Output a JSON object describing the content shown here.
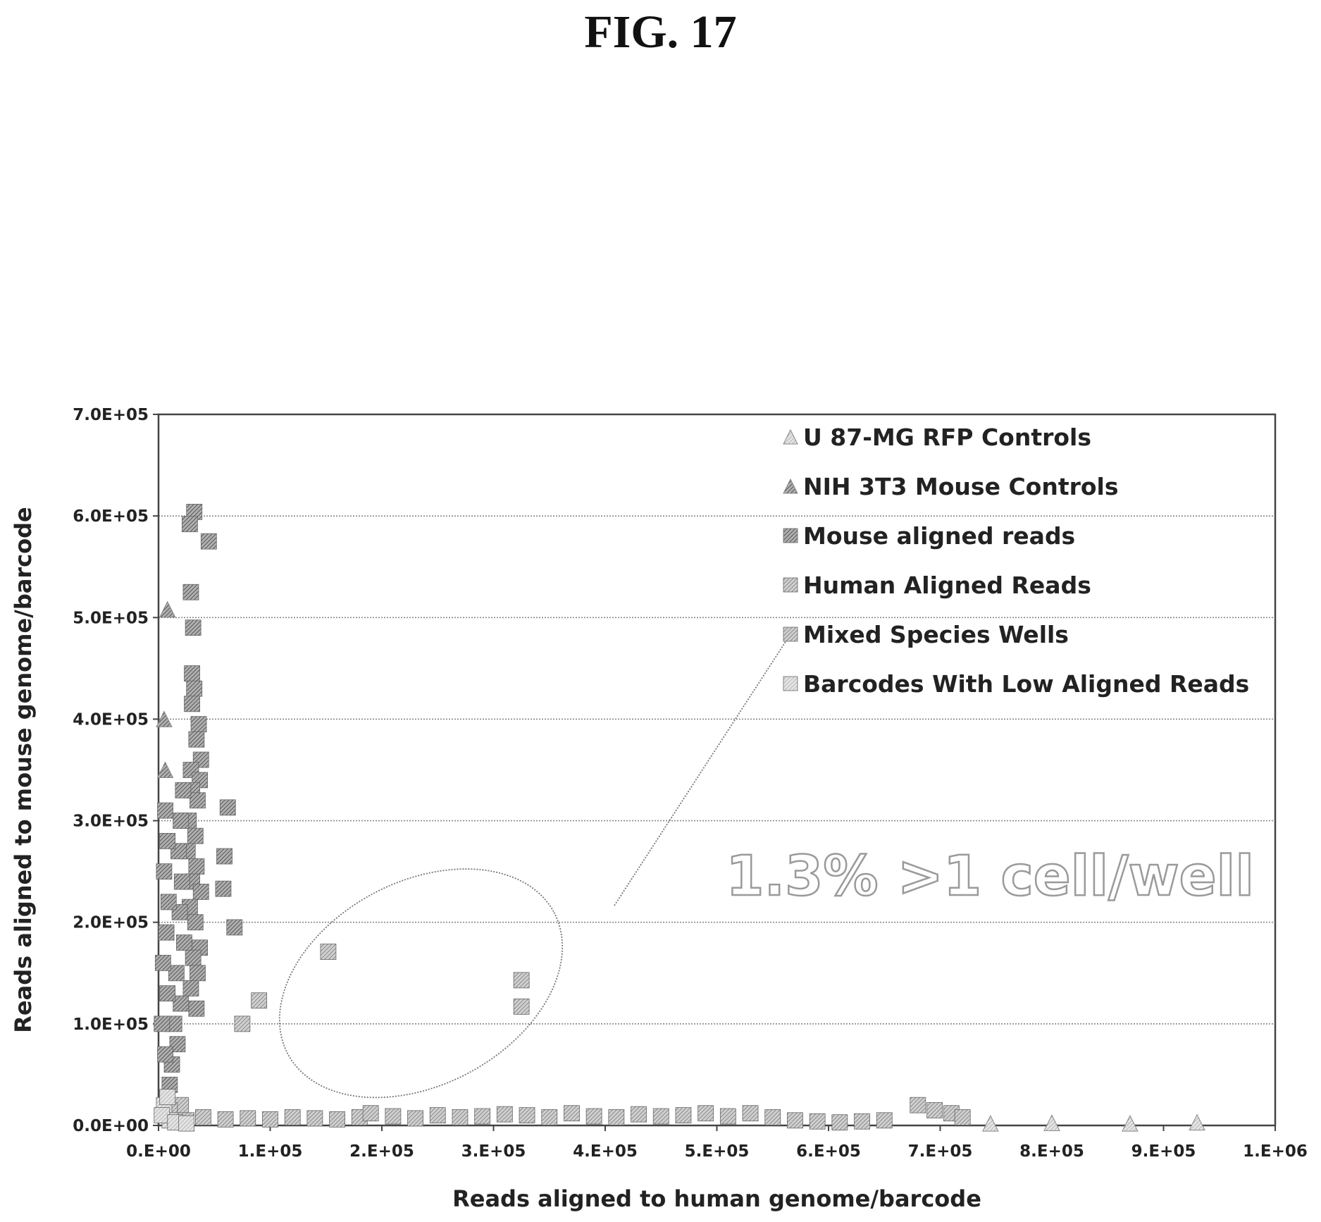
{
  "figure_label": "FIG. 17",
  "chart_data": {
    "type": "scatter",
    "xlabel": "Reads aligned to human genome/barcode",
    "ylabel": "Reads aligned to mouse genome/barcode",
    "xlim": [
      0,
      1000000
    ],
    "ylim": [
      0,
      700000
    ],
    "x_ticks": [
      {
        "v": 0,
        "label": "0.E+00"
      },
      {
        "v": 100000,
        "label": "1.E+05"
      },
      {
        "v": 200000,
        "label": "2.E+05"
      },
      {
        "v": 300000,
        "label": "3.E+05"
      },
      {
        "v": 400000,
        "label": "4.E+05"
      },
      {
        "v": 500000,
        "label": "5.E+05"
      },
      {
        "v": 600000,
        "label": "6.E+05"
      },
      {
        "v": 700000,
        "label": "7.E+05"
      },
      {
        "v": 800000,
        "label": "8.E+05"
      },
      {
        "v": 900000,
        "label": "9.E+05"
      },
      {
        "v": 1000000,
        "label": "1.E+06"
      }
    ],
    "y_ticks": [
      {
        "v": 0,
        "label": "0.0E+00"
      },
      {
        "v": 100000,
        "label": "1.0E+05"
      },
      {
        "v": 200000,
        "label": "2.0E+05"
      },
      {
        "v": 300000,
        "label": "3.0E+05"
      },
      {
        "v": 400000,
        "label": "4.0E+05"
      },
      {
        "v": 500000,
        "label": "5.0E+05"
      },
      {
        "v": 600000,
        "label": "6.0E+05"
      },
      {
        "v": 700000,
        "label": "7.0E+05"
      }
    ],
    "grid": "horizontal",
    "legend_position": "top-right",
    "annotation": "1.3% >1 cell/well",
    "highlight_ellipse": {
      "cx": 235000,
      "cy": 140000,
      "rx": 135000,
      "ry": 100000,
      "rotation_deg": -28
    },
    "series": [
      {
        "name": "U 87-MG RFP Controls",
        "marker": "triangle",
        "color": "#c8c8c8",
        "points": [
          [
            930000,
            3000
          ],
          [
            870000,
            2000
          ],
          [
            800000,
            2500
          ],
          [
            745000,
            2000
          ]
        ]
      },
      {
        "name": "NIH 3T3 Mouse Controls",
        "marker": "triangle",
        "color": "#909090",
        "points": [
          [
            8000,
            508000
          ],
          [
            5000,
            400000
          ],
          [
            6000,
            350000
          ]
        ]
      },
      {
        "name": "Mouse aligned reads",
        "marker": "square",
        "color": "#7a7a7a",
        "points": [
          [
            32000,
            604000
          ],
          [
            28000,
            592000
          ],
          [
            45000,
            575000
          ],
          [
            29000,
            525000
          ],
          [
            31000,
            490000
          ],
          [
            30000,
            445000
          ],
          [
            32000,
            430000
          ],
          [
            30000,
            415000
          ],
          [
            36000,
            395000
          ],
          [
            34000,
            380000
          ],
          [
            38000,
            360000
          ],
          [
            29000,
            350000
          ],
          [
            37000,
            340000
          ],
          [
            30000,
            330000
          ],
          [
            35000,
            320000
          ],
          [
            27000,
            300000
          ],
          [
            33000,
            285000
          ],
          [
            26000,
            270000
          ],
          [
            34000,
            255000
          ],
          [
            30000,
            240000
          ],
          [
            38000,
            230000
          ],
          [
            28000,
            215000
          ],
          [
            33000,
            200000
          ],
          [
            37000,
            175000
          ],
          [
            31000,
            165000
          ],
          [
            35000,
            150000
          ],
          [
            29000,
            135000
          ],
          [
            34000,
            115000
          ],
          [
            22000,
            330000
          ],
          [
            20000,
            300000
          ],
          [
            18000,
            270000
          ],
          [
            21000,
            240000
          ],
          [
            19000,
            210000
          ],
          [
            23000,
            180000
          ],
          [
            16000,
            150000
          ],
          [
            20000,
            120000
          ],
          [
            14000,
            100000
          ],
          [
            17000,
            80000
          ],
          [
            12000,
            60000
          ],
          [
            10000,
            40000
          ],
          [
            6000,
            310000
          ],
          [
            8000,
            280000
          ],
          [
            5000,
            250000
          ],
          [
            9000,
            220000
          ],
          [
            7000,
            190000
          ],
          [
            4000,
            160000
          ],
          [
            8000,
            130000
          ],
          [
            3000,
            100000
          ],
          [
            6000,
            70000
          ],
          [
            62000,
            313000
          ],
          [
            59000,
            265000
          ],
          [
            58000,
            233000
          ],
          [
            68000,
            195000
          ]
        ]
      },
      {
        "name": "Human Aligned Reads",
        "marker": "square",
        "color": "#bdbdbd",
        "points": [
          [
            40000,
            8000
          ],
          [
            60000,
            6000
          ],
          [
            80000,
            7000
          ],
          [
            100000,
            6000
          ],
          [
            120000,
            8000
          ],
          [
            140000,
            7000
          ],
          [
            160000,
            6000
          ],
          [
            180000,
            8000
          ],
          [
            190000,
            12000
          ],
          [
            210000,
            9000
          ],
          [
            230000,
            7000
          ],
          [
            250000,
            10000
          ],
          [
            270000,
            8000
          ],
          [
            290000,
            9000
          ],
          [
            310000,
            11000
          ],
          [
            330000,
            10000
          ],
          [
            350000,
            8000
          ],
          [
            370000,
            12000
          ],
          [
            390000,
            9000
          ],
          [
            410000,
            8000
          ],
          [
            430000,
            11000
          ],
          [
            450000,
            9000
          ],
          [
            470000,
            10000
          ],
          [
            490000,
            12000
          ],
          [
            510000,
            9000
          ],
          [
            530000,
            12000
          ],
          [
            550000,
            8000
          ],
          [
            570000,
            5000
          ],
          [
            590000,
            4000
          ],
          [
            610000,
            3000
          ],
          [
            630000,
            4000
          ],
          [
            650000,
            5000
          ],
          [
            680000,
            20000
          ],
          [
            695000,
            15000
          ],
          [
            710000,
            12000
          ],
          [
            720000,
            8000
          ],
          [
            20000,
            20000
          ],
          [
            10000,
            15000
          ],
          [
            25000,
            5000
          ]
        ]
      },
      {
        "name": "Mixed Species Wells",
        "marker": "square",
        "color": "#c9c9c9",
        "points": [
          [
            75000,
            100000
          ],
          [
            90000,
            123000
          ],
          [
            152000,
            171000
          ],
          [
            325000,
            143000
          ],
          [
            325000,
            117000
          ]
        ]
      },
      {
        "name": "Barcodes With Low Aligned Reads",
        "marker": "square",
        "color": "#d8d8d8",
        "points": [
          [
            5000,
            20000
          ],
          [
            10000,
            5000
          ],
          [
            3000,
            10000
          ],
          [
            15000,
            3000
          ],
          [
            25000,
            2000
          ],
          [
            8000,
            28000
          ]
        ]
      }
    ]
  }
}
